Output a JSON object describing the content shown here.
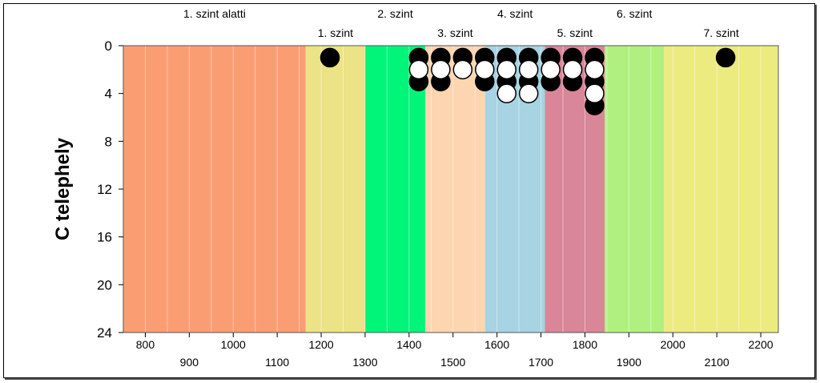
{
  "chart_data": {
    "type": "scatter",
    "title": "",
    "xlabel": "",
    "ylabel": "C telephely",
    "xlim": [
      750,
      2240
    ],
    "ylim": [
      24,
      0
    ],
    "y_inverted": true,
    "yticks": [
      0,
      4,
      8,
      12,
      16,
      20,
      24
    ],
    "xticks_lower": [
      900,
      1100,
      1300,
      1500,
      1700,
      1900,
      2100
    ],
    "xticks_upper": [
      800,
      1000,
      1200,
      1400,
      1600,
      1800,
      2000,
      2200
    ],
    "grid": "vertical minor lines every 50",
    "levels": [
      {
        "label": "1. szint alatti",
        "start": 750,
        "end": 1165,
        "color": "#fb9d73",
        "label_row": "upper"
      },
      {
        "label": "1. szint",
        "start": 1165,
        "end": 1300,
        "color": "#ebe385",
        "label_row": "lower"
      },
      {
        "label": "2. szint",
        "start": 1300,
        "end": 1437,
        "color": "#00f579",
        "label_row": "upper"
      },
      {
        "label": "3. szint",
        "start": 1437,
        "end": 1573,
        "color": "#fdd5b1",
        "label_row": "lower"
      },
      {
        "label": "4. szint",
        "start": 1573,
        "end": 1709,
        "color": "#a7d3e2",
        "label_row": "upper"
      },
      {
        "label": "5. szint",
        "start": 1709,
        "end": 1845,
        "color": "#d98699",
        "label_row": "lower"
      },
      {
        "label": "6. szint",
        "start": 1845,
        "end": 1980,
        "color": "#b0f080",
        "label_row": "upper"
      },
      {
        "label": "7. szint",
        "start": 1980,
        "end": 2240,
        "color": "#ebeb80",
        "label_row": "lower"
      }
    ],
    "series": [
      {
        "color": "#000000",
        "points": [
          {
            "x": 1220,
            "y": 1
          },
          {
            "x": 1422,
            "y": 1
          },
          {
            "x": 1422,
            "y": 3
          },
          {
            "x": 1472,
            "y": 1
          },
          {
            "x": 1472,
            "y": 3
          },
          {
            "x": 1522,
            "y": 1
          },
          {
            "x": 1572,
            "y": 1
          },
          {
            "x": 1572,
            "y": 3
          },
          {
            "x": 1622,
            "y": 1
          },
          {
            "x": 1622,
            "y": 3
          },
          {
            "x": 1672,
            "y": 1
          },
          {
            "x": 1672,
            "y": 3
          },
          {
            "x": 1722,
            "y": 1
          },
          {
            "x": 1722,
            "y": 3
          },
          {
            "x": 1772,
            "y": 1
          },
          {
            "x": 1772,
            "y": 3
          },
          {
            "x": 1822,
            "y": 1
          },
          {
            "x": 1822,
            "y": 3
          },
          {
            "x": 1822,
            "y": 5
          },
          {
            "x": 2120,
            "y": 1
          }
        ]
      },
      {
        "color": "#ffffff",
        "points": [
          {
            "x": 1422,
            "y": 2
          },
          {
            "x": 1472,
            "y": 2
          },
          {
            "x": 1522,
            "y": 2
          },
          {
            "x": 1572,
            "y": 2
          },
          {
            "x": 1622,
            "y": 2
          },
          {
            "x": 1622,
            "y": 4
          },
          {
            "x": 1672,
            "y": 2
          },
          {
            "x": 1672,
            "y": 4
          },
          {
            "x": 1722,
            "y": 2
          },
          {
            "x": 1772,
            "y": 2
          },
          {
            "x": 1822,
            "y": 2
          },
          {
            "x": 1822,
            "y": 4
          }
        ]
      }
    ]
  }
}
